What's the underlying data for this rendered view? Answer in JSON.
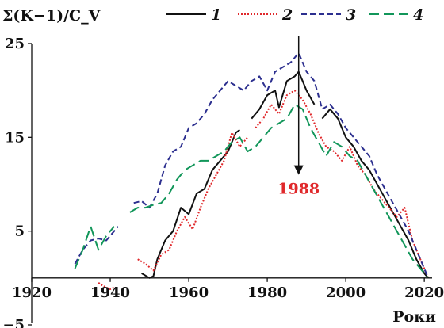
{
  "chart_data": {
    "type": "line",
    "ylabel": "Σ(K−1)/C_V",
    "xlabel": "Роки",
    "xlim": [
      1920,
      2023
    ],
    "ylim": [
      -5,
      25
    ],
    "x_ticks": [
      "1920",
      "1940",
      "1960",
      "1980",
      "2000",
      "2020"
    ],
    "y_ticks": [
      "25",
      "15",
      "5",
      "−5"
    ],
    "grid": false,
    "legend_position": "top",
    "annotation": {
      "text": "1988",
      "x": 1988,
      "arrow_from": 25,
      "arrow_to": 11
    },
    "series": [
      {
        "name": "1",
        "color": "#111111",
        "dash": "none",
        "segments": [
          [
            [
              1948,
              0.5
            ],
            [
              1950,
              0
            ],
            [
              1951,
              0.2
            ],
            [
              1952,
              2
            ],
            [
              1954,
              4
            ],
            [
              1956,
              5
            ],
            [
              1958,
              7.5
            ],
            [
              1960,
              6.8
            ],
            [
              1962,
              9
            ],
            [
              1964,
              9.5
            ],
            [
              1966,
              11.5
            ],
            [
              1968,
              12.5
            ],
            [
              1970,
              13.5
            ],
            [
              1972,
              15.5
            ],
            [
              1973,
              15.8
            ]
          ],
          [
            [
              1976,
              17
            ],
            [
              1978,
              18
            ],
            [
              1980,
              19.5
            ],
            [
              1982,
              20
            ],
            [
              1983,
              18.2
            ],
            [
              1985,
              21
            ],
            [
              1987,
              21.5
            ],
            [
              1988,
              22
            ],
            [
              1989,
              21
            ],
            [
              1990,
              20
            ],
            [
              1992,
              18.5
            ]
          ],
          [
            [
              1994,
              17
            ],
            [
              1996,
              18
            ],
            [
              1998,
              17
            ],
            [
              2000,
              15
            ],
            [
              2002,
              14
            ],
            [
              2004,
              12.5
            ],
            [
              2006,
              11.5
            ],
            [
              2008,
              10
            ],
            [
              2010,
              8.5
            ],
            [
              2012,
              7
            ],
            [
              2014,
              5.5
            ],
            [
              2016,
              4
            ],
            [
              2018,
              2
            ],
            [
              2020,
              0.5
            ],
            [
              2021,
              0
            ]
          ]
        ]
      },
      {
        "name": "2",
        "color": "#e0282b",
        "dash": "2,2",
        "segments": [
          [
            [
              1937,
              -0.5
            ],
            [
              1938,
              -0.8
            ],
            [
              1940,
              -1.2
            ],
            [
              1941,
              -1.0
            ]
          ],
          [
            [
              1947,
              2
            ],
            [
              1949,
              1.5
            ],
            [
              1951,
              0.8
            ],
            [
              1953,
              2.5
            ],
            [
              1955,
              3
            ],
            [
              1957,
              5
            ],
            [
              1959,
              6.5
            ],
            [
              1961,
              5.2
            ],
            [
              1963,
              7.5
            ],
            [
              1965,
              9.5
            ],
            [
              1967,
              11
            ],
            [
              1969,
              12.5
            ],
            [
              1971,
              15.5
            ],
            [
              1973,
              14
            ],
            [
              1975,
              15
            ]
          ],
          [
            [
              1977,
              16
            ],
            [
              1979,
              17
            ],
            [
              1981,
              18.5
            ],
            [
              1983,
              17.5
            ],
            [
              1985,
              19.5
            ],
            [
              1987,
              20
            ],
            [
              1989,
              19
            ],
            [
              1991,
              17.5
            ],
            [
              1993,
              15.5
            ],
            [
              1995,
              14
            ],
            [
              1997,
              13.5
            ],
            [
              1999,
              12.5
            ],
            [
              2001,
              14
            ],
            [
              2003,
              12
            ],
            [
              2005,
              11
            ],
            [
              2007,
              9.5
            ],
            [
              2009,
              8.5
            ],
            [
              2011,
              7.5
            ],
            [
              2013,
              6.5
            ],
            [
              2015,
              7.5
            ],
            [
              2017,
              4
            ],
            [
              2019,
              2
            ],
            [
              2021,
              0
            ]
          ]
        ]
      },
      {
        "name": "3",
        "color": "#2c2f8f",
        "dash": "7,4",
        "segments": [
          [
            [
              1931,
              1.5
            ],
            [
              1933,
              3
            ],
            [
              1935,
              4
            ],
            [
              1937,
              4.2
            ],
            [
              1939,
              4
            ],
            [
              1941,
              5
            ],
            [
              1942,
              5.5
            ]
          ],
          [
            [
              1946,
              8
            ],
            [
              1948,
              8.2
            ],
            [
              1950,
              7.5
            ],
            [
              1952,
              9
            ],
            [
              1954,
              12
            ],
            [
              1956,
              13.5
            ],
            [
              1958,
              14
            ],
            [
              1960,
              16
            ],
            [
              1962,
              16.5
            ],
            [
              1964,
              17.5
            ],
            [
              1966,
              19
            ],
            [
              1968,
              20
            ],
            [
              1970,
              21
            ],
            [
              1972,
              20.5
            ],
            [
              1974,
              20
            ],
            [
              1976,
              21
            ],
            [
              1978,
              21.5
            ],
            [
              1980,
              20
            ],
            [
              1982,
              22
            ],
            [
              1984,
              22.5
            ],
            [
              1986,
              23
            ],
            [
              1988,
              24
            ],
            [
              1990,
              22
            ],
            [
              1992,
              21
            ],
            [
              1994,
              18
            ],
            [
              1996,
              18.5
            ],
            [
              1998,
              17.5
            ],
            [
              2000,
              16
            ],
            [
              2002,
              15
            ],
            [
              2004,
              14
            ],
            [
              2006,
              13
            ],
            [
              2008,
              11
            ],
            [
              2010,
              9.5
            ],
            [
              2012,
              8
            ],
            [
              2014,
              6.5
            ],
            [
              2016,
              5
            ],
            [
              2018,
              3
            ],
            [
              2020,
              1
            ],
            [
              2021,
              0
            ]
          ]
        ]
      },
      {
        "name": "4",
        "color": "#12965a",
        "dash": "13,6",
        "segments": [
          [
            [
              1931,
              1
            ],
            [
              1933,
              3
            ],
            [
              1935,
              5.5
            ],
            [
              1937,
              3
            ],
            [
              1939,
              4.5
            ],
            [
              1941,
              5.5
            ]
          ],
          [
            [
              1945,
              7
            ],
            [
              1947,
              7.5
            ],
            [
              1949,
              7.5
            ],
            [
              1951,
              7.8
            ],
            [
              1953,
              8
            ],
            [
              1955,
              9
            ],
            [
              1957,
              10.5
            ],
            [
              1959,
              11.5
            ],
            [
              1961,
              12
            ],
            [
              1963,
              12.5
            ],
            [
              1965,
              12.5
            ],
            [
              1967,
              13
            ],
            [
              1969,
              13.5
            ],
            [
              1971,
              14.5
            ],
            [
              1973,
              15
            ],
            [
              1975,
              13.5
            ],
            [
              1977,
              14
            ],
            [
              1979,
              15
            ],
            [
              1981,
              16
            ],
            [
              1983,
              16.5
            ],
            [
              1985,
              17
            ],
            [
              1987,
              18.5
            ],
            [
              1989,
              18
            ],
            [
              1991,
              16
            ],
            [
              1993,
              14.5
            ],
            [
              1995,
              13
            ],
            [
              1997,
              14.5
            ],
            [
              1999,
              14
            ],
            [
              2001,
              13
            ],
            [
              2003,
              12.5
            ],
            [
              2005,
              11
            ],
            [
              2007,
              9.5
            ],
            [
              2009,
              8
            ],
            [
              2011,
              6.5
            ],
            [
              2013,
              5
            ],
            [
              2015,
              3.5
            ],
            [
              2017,
              2
            ],
            [
              2019,
              1
            ],
            [
              2021,
              0
            ]
          ]
        ]
      }
    ]
  }
}
